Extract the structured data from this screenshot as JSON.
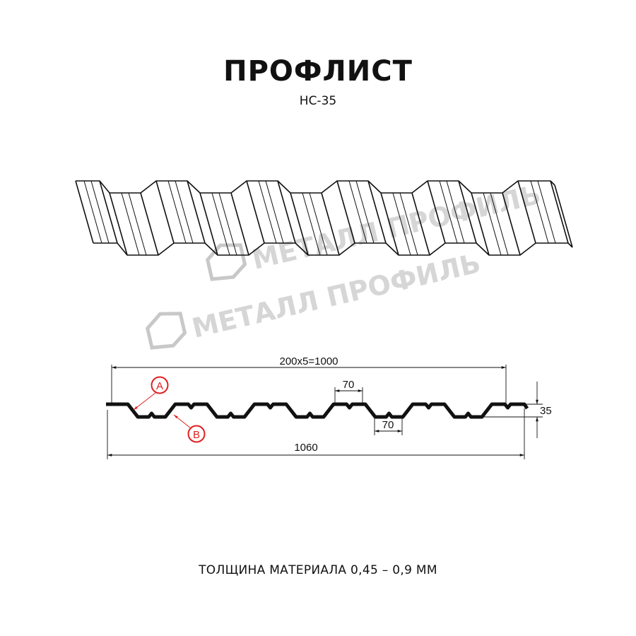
{
  "title": "ПРОФЛИСТ",
  "subtitle": "НС-35",
  "watermark": "МЕТАЛЛ ПРОФИЛЬ",
  "dimensions": {
    "pitch_total": "200x5=1000",
    "ridge_width": "70",
    "trough_width": "70",
    "height": "35",
    "full_width": "1060"
  },
  "callouts": {
    "a": "A",
    "b": "B"
  },
  "footer": "ТОЛЩИНА МАТЕРИАЛА 0,45 – 0,9 ММ",
  "colors": {
    "line": "#111111",
    "callout": "#e02020",
    "watermark": "#c8c8c8"
  }
}
